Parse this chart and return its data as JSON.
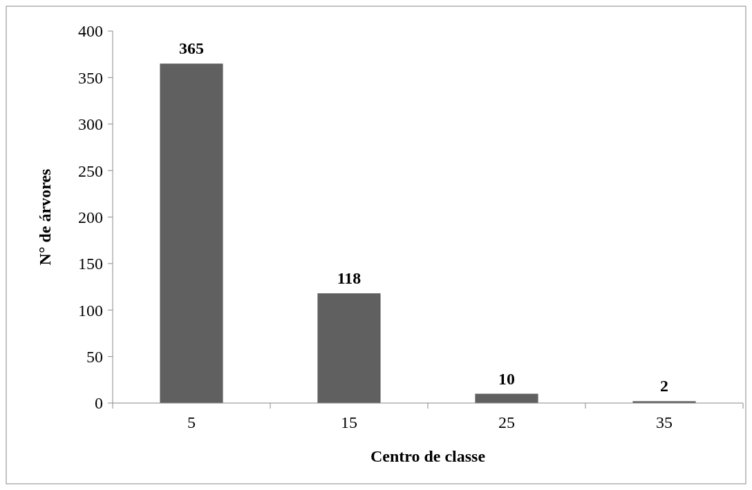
{
  "chart_data": {
    "type": "bar",
    "xlabel": "Centro de classe",
    "ylabel": "N° de árvores",
    "categories": [
      "5",
      "15",
      "25",
      "35"
    ],
    "values": [
      365,
      118,
      10,
      2
    ],
    "color": "#606060",
    "ylim": [
      0,
      400
    ],
    "yticks": [
      0,
      50,
      100,
      150,
      200,
      250,
      300,
      350,
      400
    ],
    "data_labels": true,
    "grid": false
  }
}
